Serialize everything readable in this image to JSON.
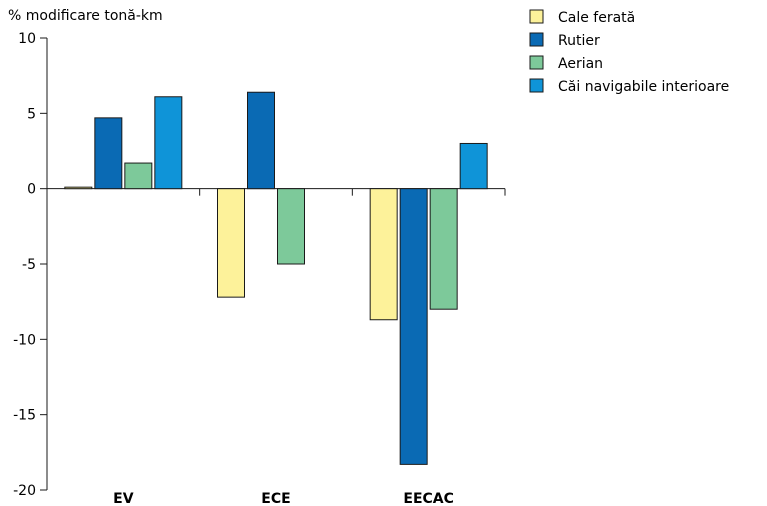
{
  "chart_data": {
    "type": "bar",
    "title": "",
    "ylabel": "% modificare tonă-km",
    "xlabel": "",
    "categories": [
      "EV",
      "ECE",
      "EECAC"
    ],
    "series": [
      {
        "name": "Cale ferată",
        "color": "#fdf29a",
        "values": [
          0.1,
          -7.2,
          -8.7
        ]
      },
      {
        "name": "Rutier",
        "color": "#0a6ab4",
        "values": [
          4.7,
          6.4,
          -18.3
        ]
      },
      {
        "name": "Aerian",
        "color": "#7dc99a",
        "values": [
          1.7,
          -5.0,
          -8.0
        ]
      },
      {
        "name": "Căi navigabile interioare",
        "color": "#0f94d8",
        "values": [
          6.1,
          0,
          3.0
        ]
      }
    ],
    "ylim": [
      -20,
      10
    ],
    "yticks": [
      10,
      5,
      0,
      -5,
      -10,
      -15,
      -20
    ],
    "ytick_labels": [
      "10",
      "5",
      "0",
      "-5",
      "-10",
      "-15",
      "-20"
    ],
    "grid": false,
    "legend_position": "top-right"
  }
}
